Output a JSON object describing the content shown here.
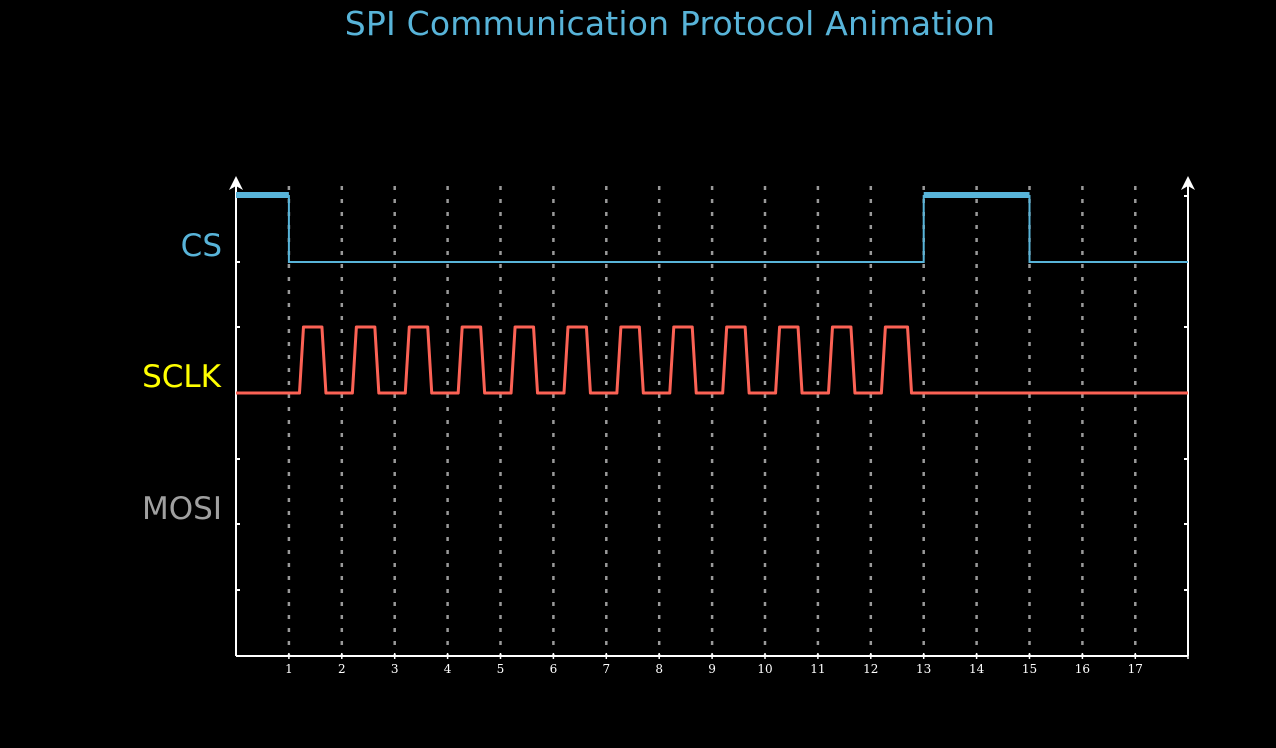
{
  "title": "SPI Communication Protocol Animation",
  "colors": {
    "background": "#000000",
    "title": "#58b4d9",
    "axis": "#ffffff",
    "grid": "#9a9a9a",
    "cs": "#58b4d9",
    "sclk": "#fc6255",
    "sclk_label": "#ffff00",
    "mosi_label": "#a0a0a0",
    "tick_label": "#ffffff"
  },
  "signals": [
    {
      "name": "CS",
      "color_key": "cs"
    },
    {
      "name": "SCLK",
      "color_key": "sclk_label"
    },
    {
      "name": "MOSI",
      "color_key": "mosi_label"
    }
  ],
  "x_ticks": [
    "1",
    "2",
    "3",
    "4",
    "5",
    "6",
    "7",
    "8",
    "9",
    "10",
    "11",
    "12",
    "13",
    "14",
    "15",
    "16",
    "17"
  ],
  "waveforms": {
    "cs": {
      "high_intervals": [
        [
          0,
          1
        ],
        [
          13,
          15
        ]
      ],
      "end": 18
    },
    "sclk": {
      "pulses": [
        [
          1.2,
          1.7
        ],
        [
          2.2,
          2.7
        ],
        [
          3.2,
          3.7
        ],
        [
          4.2,
          4.7
        ],
        [
          5.2,
          5.7
        ],
        [
          6.2,
          6.7
        ],
        [
          7.2,
          7.7
        ],
        [
          8.2,
          8.7
        ],
        [
          9.2,
          9.7
        ],
        [
          10.2,
          10.7
        ],
        [
          11.2,
          11.7
        ],
        [
          12.2,
          12.77
        ]
      ],
      "end": 18
    },
    "mosi": {
      "high_intervals": []
    }
  }
}
